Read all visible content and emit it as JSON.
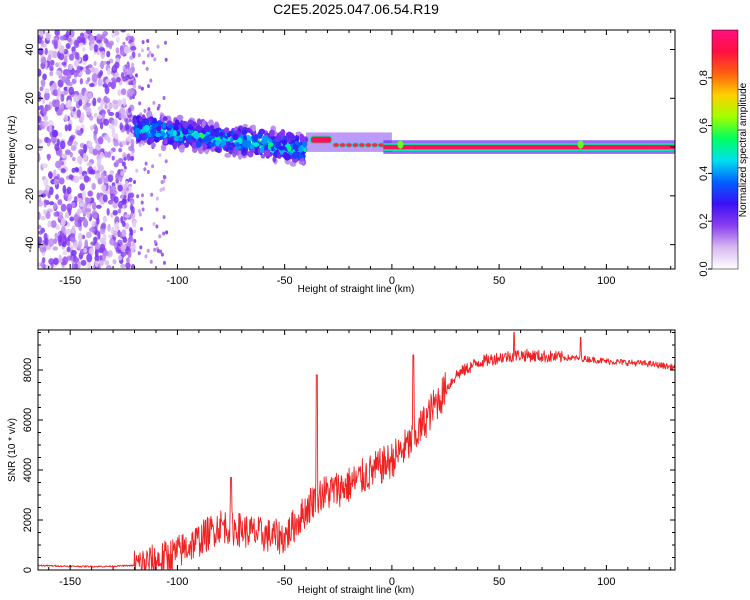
{
  "title": "C2E5.2025.047.06.54.R19",
  "colors": {
    "snr_line": "#ee2222",
    "colormap": [
      "#ffffff",
      "#d8b8f0",
      "#8a3ef0",
      "#3c10f5",
      "#0060ff",
      "#00e0f0",
      "#00ff60",
      "#a0ff00",
      "#ffd000",
      "#ff6010",
      "#ff1040",
      "#ff1080"
    ]
  },
  "chart_data": [
    {
      "type": "heatmap",
      "name": "spectrogram",
      "title": "C2E5.2025.047.06.54.R19",
      "xlabel": "Height of straight line (km)",
      "ylabel": "Frequency (Hz)",
      "xlim": [
        -165,
        132
      ],
      "ylim": [
        -50,
        48
      ],
      "xticks": [
        -150,
        -100,
        -50,
        0,
        50,
        100
      ],
      "yticks": [
        -40,
        -20,
        0,
        20,
        40
      ],
      "xtick_labels": [
        "-150",
        "-100",
        "-50",
        "0",
        "50",
        "100"
      ],
      "ytick_labels": [
        "-40",
        "-20",
        "0",
        "20",
        "40"
      ],
      "colorbar": {
        "label": "Normalized spectral amplitude",
        "range": [
          0,
          1
        ],
        "ticks": [
          0.0,
          0.2,
          0.4,
          0.6,
          0.8
        ],
        "tick_labels": [
          "0.0",
          "0.2",
          "0.4",
          "0.6",
          "0.8"
        ]
      },
      "regions": [
        {
          "name": "noise",
          "x": [
            -165,
            -120
          ],
          "freq": [
            -50,
            48
          ],
          "amplitude": 0.18
        },
        {
          "name": "scatter",
          "x": [
            -120,
            -40
          ],
          "freq_center": [
            8,
            -1
          ],
          "freq_spread": 6,
          "amplitude": 0.55
        },
        {
          "name": "transition",
          "x": [
            -40,
            0
          ],
          "freq_center": 2,
          "freq_spread": 2,
          "amplitude": 0.85
        },
        {
          "name": "tone",
          "x": [
            0,
            132
          ],
          "freq_center": 0,
          "freq_spread": 1,
          "amplitude": 0.95
        }
      ]
    },
    {
      "type": "line",
      "name": "snr",
      "xlabel": "Height of straight line (km)",
      "ylabel": "SNR (10 * v/v)",
      "xlim": [
        -165,
        132
      ],
      "ylim": [
        0,
        9600
      ],
      "xticks": [
        -150,
        -100,
        -50,
        0,
        50,
        100
      ],
      "yticks": [
        0,
        2000,
        4000,
        6000,
        8000
      ],
      "xtick_labels": [
        "-150",
        "-100",
        "-50",
        "0",
        "50",
        "100"
      ],
      "ytick_labels": [
        "0",
        "2000",
        "4000",
        "6000",
        "8000"
      ],
      "series": [
        {
          "name": "SNR",
          "x": [
            -165,
            -150,
            -135,
            -120,
            -110,
            -100,
            -90,
            -80,
            -70,
            -60,
            -50,
            -40,
            -35,
            -30,
            -20,
            -10,
            0,
            10,
            20,
            30,
            40,
            50,
            60,
            70,
            80,
            90,
            100,
            110,
            120,
            132
          ],
          "values": [
            180,
            150,
            140,
            180,
            350,
            700,
            1200,
            1800,
            1600,
            1400,
            1300,
            2400,
            3000,
            3100,
            3400,
            3900,
            4400,
            5200,
            6600,
            7800,
            8300,
            8500,
            8600,
            8550,
            8500,
            8450,
            8350,
            8300,
            8250,
            8100
          ]
        }
      ],
      "spikes": [
        {
          "x": -75,
          "y": 3700
        },
        {
          "x": -35,
          "y": 7800
        },
        {
          "x": 10,
          "y": 8600
        },
        {
          "x": 57,
          "y": 9500
        },
        {
          "x": 88,
          "y": 9300
        }
      ]
    }
  ]
}
